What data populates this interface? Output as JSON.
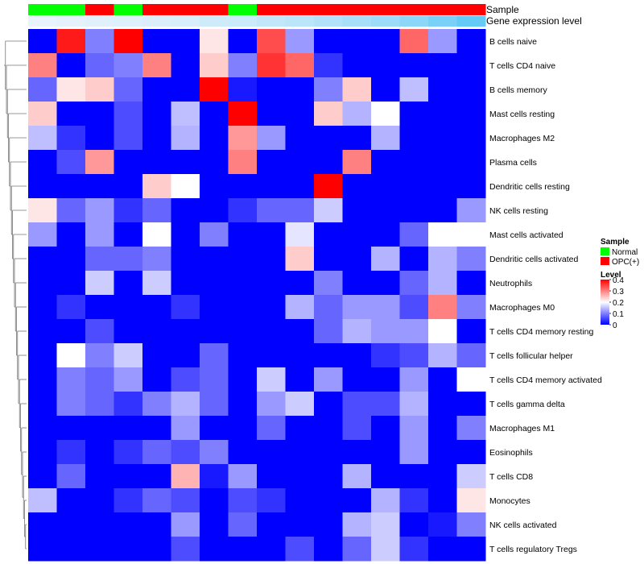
{
  "chart_data": {
    "type": "heatmap",
    "annotation_titles": {
      "sample": "Sample",
      "expression": "Gene expression level"
    },
    "sample_annotation": [
      "Normal",
      "Normal",
      "OPC(+)",
      "Normal",
      "OPC(+)",
      "OPC(+)",
      "OPC(+)",
      "Normal",
      "OPC(+)",
      "OPC(+)",
      "OPC(+)",
      "OPC(+)",
      "OPC(+)",
      "OPC(+)",
      "OPC(+)",
      "OPC(+)"
    ],
    "expression_annotation": [
      0.02,
      0.04,
      0.06,
      0.08,
      0.1,
      0.12,
      0.18,
      0.2,
      0.26,
      0.3,
      0.36,
      0.42,
      0.5,
      0.6,
      0.72,
      0.85
    ],
    "rows": [
      "B cells naive",
      "T cells CD4 naive",
      "B cells memory",
      "Mast cells resting",
      "Macrophages M2",
      "Plasma cells",
      "Dendritic cells resting",
      "NK cells resting",
      "Mast cells activated",
      "Dendritic cells activated",
      "Neutrophils",
      "Macrophages M0",
      "T cells CD4 memory resting",
      "T cells follicular helper",
      "T cells CD4 memory activated",
      "T cells gamma delta",
      "Macrophages M1",
      "Eosinophils",
      "T cells CD8",
      "Monocytes",
      "NK cells activated",
      "T cells regulatory  Tregs"
    ],
    "values": [
      [
        0,
        0.38,
        0.1,
        0.4,
        0,
        0,
        0.22,
        0,
        0.34,
        0.12,
        0,
        0,
        0,
        0.32,
        0.12,
        0
      ],
      [
        0.3,
        0,
        0.08,
        0.1,
        0.3,
        0,
        0.24,
        0.1,
        0.36,
        0.32,
        0.04,
        0,
        0,
        0,
        0,
        0
      ],
      [
        0.08,
        0.22,
        0.24,
        0.08,
        0,
        0,
        0.4,
        0.02,
        0,
        0,
        0.1,
        0.24,
        0,
        0.15,
        0,
        0
      ],
      [
        0.24,
        0,
        0,
        0.06,
        0,
        0.15,
        0,
        0.4,
        0,
        0,
        0.24,
        0.14,
        0.2,
        0,
        0,
        0
      ],
      [
        0.15,
        0.04,
        0,
        0.06,
        0,
        0.14,
        0,
        0.28,
        0.12,
        0,
        0,
        0,
        0.14,
        0,
        0,
        0
      ],
      [
        0,
        0.06,
        0.28,
        0,
        0,
        0,
        0,
        0.3,
        0,
        0,
        0,
        0.3,
        0,
        0,
        0,
        0
      ],
      [
        0,
        0,
        0,
        0,
        0.24,
        0.2,
        0,
        0,
        0,
        0,
        0.4,
        0,
        0,
        0,
        0,
        0
      ],
      [
        0.22,
        0.08,
        0.12,
        0.04,
        0.08,
        0,
        0,
        0.04,
        0.08,
        0.08,
        0.16,
        0,
        0,
        0,
        0,
        0.12
      ],
      [
        0.12,
        0,
        0.12,
        0,
        0.2,
        0,
        0.1,
        0,
        0,
        0.18,
        0,
        0,
        0,
        0.08,
        0.2,
        0.2
      ],
      [
        0,
        0,
        0.08,
        0.08,
        0.1,
        0,
        0,
        0,
        0,
        0.24,
        0,
        0,
        0.14,
        0,
        0.14,
        0.1
      ],
      [
        0,
        0,
        0.16,
        0,
        0.16,
        0,
        0,
        0,
        0,
        0,
        0.1,
        0,
        0,
        0.08,
        0.14,
        0
      ],
      [
        0,
        0.04,
        0,
        0,
        0,
        0.04,
        0,
        0,
        0,
        0.14,
        0.08,
        0.12,
        0.12,
        0.06,
        0.3,
        0.1
      ],
      [
        0,
        0,
        0.06,
        0,
        0,
        0,
        0,
        0,
        0,
        0,
        0.08,
        0.14,
        0.12,
        0.12,
        0.2,
        0
      ],
      [
        0,
        0.2,
        0.1,
        0.16,
        0,
        0,
        0.08,
        0,
        0,
        0,
        0,
        0,
        0.04,
        0.06,
        0.14,
        0.08
      ],
      [
        0,
        0.1,
        0.08,
        0.12,
        0,
        0.06,
        0.08,
        0,
        0.16,
        0,
        0.12,
        0,
        0,
        0.12,
        0,
        0.2
      ],
      [
        0,
        0.1,
        0.08,
        0.04,
        0.1,
        0.14,
        0.08,
        0,
        0.12,
        0.16,
        0,
        0.06,
        0.06,
        0.14,
        0,
        0
      ],
      [
        0,
        0,
        0,
        0,
        0,
        0.12,
        0,
        0,
        0.08,
        0,
        0,
        0.06,
        0,
        0.12,
        0,
        0.1
      ],
      [
        0,
        0.04,
        0,
        0.04,
        0.08,
        0.06,
        0.1,
        0,
        0,
        0,
        0,
        0,
        0,
        0.12,
        0,
        0
      ],
      [
        0,
        0.08,
        0,
        0,
        0,
        0.26,
        0.02,
        0.12,
        0,
        0,
        0,
        0.14,
        0,
        0,
        0,
        0.16
      ],
      [
        0.15,
        0,
        0,
        0.04,
        0.08,
        0.06,
        0,
        0.06,
        0.04,
        0,
        0,
        0,
        0.14,
        0.04,
        0,
        0.22
      ],
      [
        0,
        0,
        0,
        0,
        0,
        0.12,
        0,
        0.08,
        0,
        0,
        0,
        0.14,
        0.16,
        0,
        0.02,
        0.1
      ],
      [
        0,
        0,
        0,
        0,
        0,
        0.06,
        0,
        0,
        0,
        0.06,
        0,
        0.08,
        0.16,
        0.04,
        0,
        0
      ]
    ],
    "legend": {
      "sample_title": "Sample",
      "sample_items": [
        {
          "label": "Normal",
          "color": "#00ff00"
        },
        {
          "label": "OPC(+)",
          "color": "#ff0000"
        }
      ],
      "level_title": "Level",
      "level_ticks": [
        "0.4",
        "0.3",
        "0.2",
        "0.1",
        "0"
      ],
      "level_range": [
        0,
        0.4
      ]
    },
    "colors": {
      "low": "#0000ff",
      "mid": "#ffffff",
      "high": "#ff0000",
      "normal": "#00ff00",
      "opc": "#ff0000",
      "expr_low": "#ebf4fb",
      "expr_high": "#4cc3f5"
    }
  }
}
